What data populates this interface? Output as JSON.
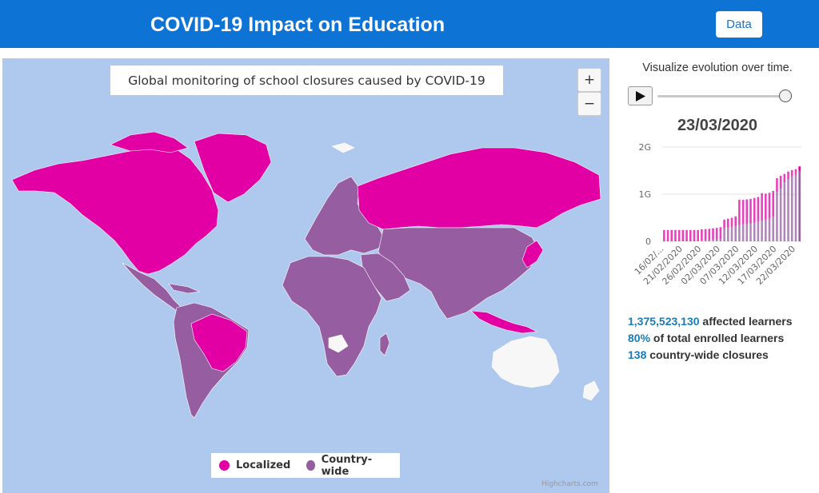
{
  "header": {
    "title": "COVID-19 Impact on Education",
    "data_button_label": "Data",
    "background_color": "#0d74d6"
  },
  "map": {
    "title": "Global monitoring of school closures caused by COVID-19",
    "zoom_in_label": "+",
    "zoom_out_label": "−",
    "ocean_color": "#aec8ee",
    "legend": [
      {
        "label": "Localized",
        "color": "#e200a4"
      },
      {
        "label": "Country-wide",
        "color": "#965da0"
      }
    ],
    "no_data_color": "#f7f7f7",
    "credits": "Highcharts.com"
  },
  "timeline": {
    "caption": "Visualize evolution over time.",
    "current_date": "23/03/2020",
    "slider_position": 1.0
  },
  "chart_data": {
    "type": "bar",
    "stacked": true,
    "ylim": [
      0,
      2000000000
    ],
    "y_tick_labels": [
      "0",
      "1G",
      "2G"
    ],
    "x_tick_labels": [
      "16/02/...",
      "21/02/2020",
      "26/02/2020",
      "02/03/2020",
      "07/03/2020",
      "12/03/2020",
      "17/03/2020",
      "22/03/2020"
    ],
    "categories": [
      "16/02",
      "17/02",
      "18/02",
      "19/02",
      "20/02",
      "21/02",
      "22/02",
      "23/02",
      "24/02",
      "25/02",
      "26/02",
      "27/02",
      "28/02",
      "29/02",
      "01/03",
      "02/03",
      "03/03",
      "04/03",
      "05/03",
      "06/03",
      "07/03",
      "08/03",
      "09/03",
      "10/03",
      "11/03",
      "12/03",
      "13/03",
      "14/03",
      "15/03",
      "16/03",
      "17/03",
      "18/03",
      "19/03",
      "20/03",
      "21/03",
      "22/03",
      "23/03"
    ],
    "series": [
      {
        "color": "#e200a4",
        "values": [
          240000000,
          240000000,
          240000000,
          240000000,
          240000000,
          240000000,
          240000000,
          240000000,
          240000000,
          240000000,
          240000000,
          240000000,
          240000000,
          245000000,
          250000000,
          260000000,
          180000000,
          190000000,
          200000000,
          200000000,
          530000000,
          520000000,
          520000000,
          520000000,
          520000000,
          520000000,
          580000000,
          550000000,
          550000000,
          550000000,
          290000000,
          270000000,
          180000000,
          160000000,
          130000000,
          120000000,
          90000000
        ]
      },
      {
        "color": "#965da0",
        "values": [
          0,
          0,
          0,
          0,
          0,
          0,
          0,
          0,
          0,
          0,
          15000000,
          20000000,
          25000000,
          30000000,
          35000000,
          40000000,
          280000000,
          290000000,
          300000000,
          330000000,
          350000000,
          360000000,
          370000000,
          380000000,
          400000000,
          420000000,
          440000000,
          460000000,
          480000000,
          520000000,
          1050000000,
          1120000000,
          1250000000,
          1320000000,
          1380000000,
          1410000000,
          1500000000
        ]
      }
    ]
  },
  "stats": [
    {
      "value": "1,375,523,130",
      "label": " affected learners"
    },
    {
      "value": "80%",
      "label": " of total enrolled learners"
    },
    {
      "value": "138",
      "label": " country-wide closures"
    }
  ]
}
